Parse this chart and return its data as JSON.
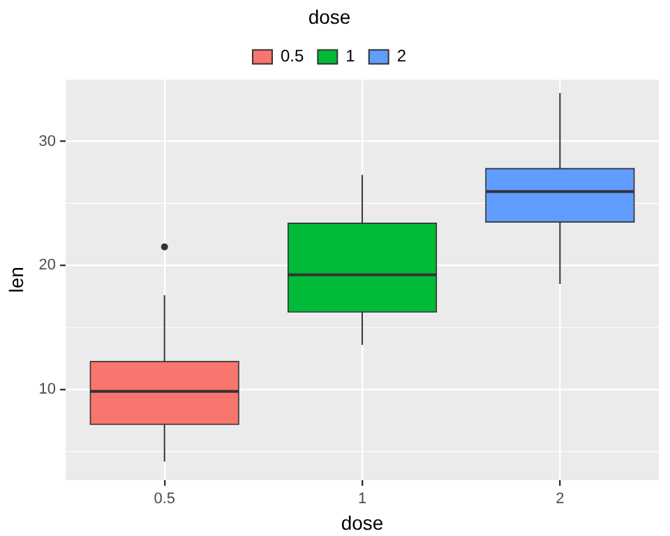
{
  "chart_data": {
    "type": "box",
    "xlabel": "dose",
    "ylabel": "len",
    "legend_title": "dose",
    "categories": [
      "0.5",
      "1",
      "2"
    ],
    "series": [
      {
        "name": "0.5",
        "color": "#f8766d",
        "boxes": [
          {
            "low": 4.2,
            "q1": 7.2,
            "median": 9.85,
            "q3": 12.25,
            "high": 17.6,
            "outliers": [
              21.5
            ]
          },
          null,
          null
        ]
      },
      {
        "name": "1",
        "color": "#00ba38",
        "boxes": [
          null,
          {
            "low": 13.6,
            "q1": 16.25,
            "median": 19.25,
            "q3": 23.4,
            "high": 27.3
          },
          null
        ]
      },
      {
        "name": "2",
        "color": "#619cff",
        "boxes": [
          null,
          null,
          {
            "low": 18.5,
            "q1": 23.5,
            "median": 25.95,
            "q3": 27.8,
            "high": 33.9
          }
        ]
      }
    ],
    "ylim": [
      2.7,
      35
    ],
    "yticks": [
      10,
      20,
      30
    ],
    "grid": true,
    "legend": "top"
  }
}
